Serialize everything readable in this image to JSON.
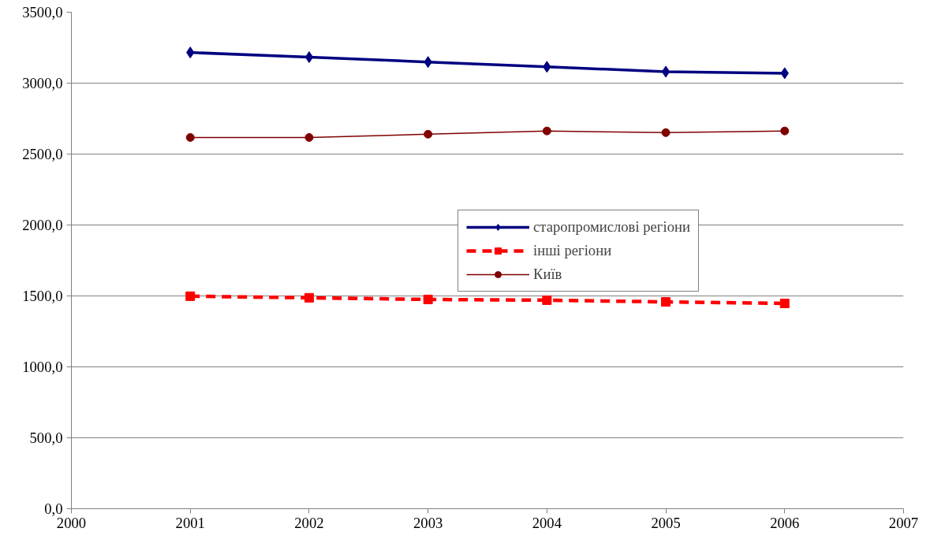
{
  "chart_data": {
    "type": "line",
    "x": [
      2001,
      2002,
      2003,
      2004,
      2005,
      2006
    ],
    "series": [
      {
        "name": "старопромислові регіони",
        "color": "#000080",
        "marker": "diamond",
        "line_style": "solid",
        "values": [
          3216,
          3183,
          3149,
          3115,
          3081,
          3070
        ]
      },
      {
        "name": "інші регіони",
        "color": "#ff0000",
        "marker": "square",
        "line_style": "dashed",
        "values": [
          1498,
          1487,
          1475,
          1470,
          1458,
          1447
        ]
      },
      {
        "name": "Київ",
        "color": "#800000",
        "marker": "circle",
        "line_style": "solid",
        "values": [
          2617,
          2617,
          2640,
          2663,
          2651,
          2663
        ]
      }
    ],
    "xlim": [
      2000,
      2007
    ],
    "xticks": [
      2000,
      2001,
      2002,
      2003,
      2004,
      2005,
      2006,
      2007
    ],
    "ylim": [
      0,
      3500
    ],
    "yticks": [
      {
        "value": 0,
        "label": "0,0"
      },
      {
        "value": 500,
        "label": "500,0"
      },
      {
        "value": 1000,
        "label": "1000,0"
      },
      {
        "value": 1500,
        "label": "1500,0"
      },
      {
        "value": 2000,
        "label": "2000,0"
      },
      {
        "value": 2500,
        "label": "2500,0"
      },
      {
        "value": 3000,
        "label": "3000,0"
      },
      {
        "value": 3500,
        "label": "3500,0"
      }
    ],
    "grid": "y",
    "legend": "right"
  }
}
